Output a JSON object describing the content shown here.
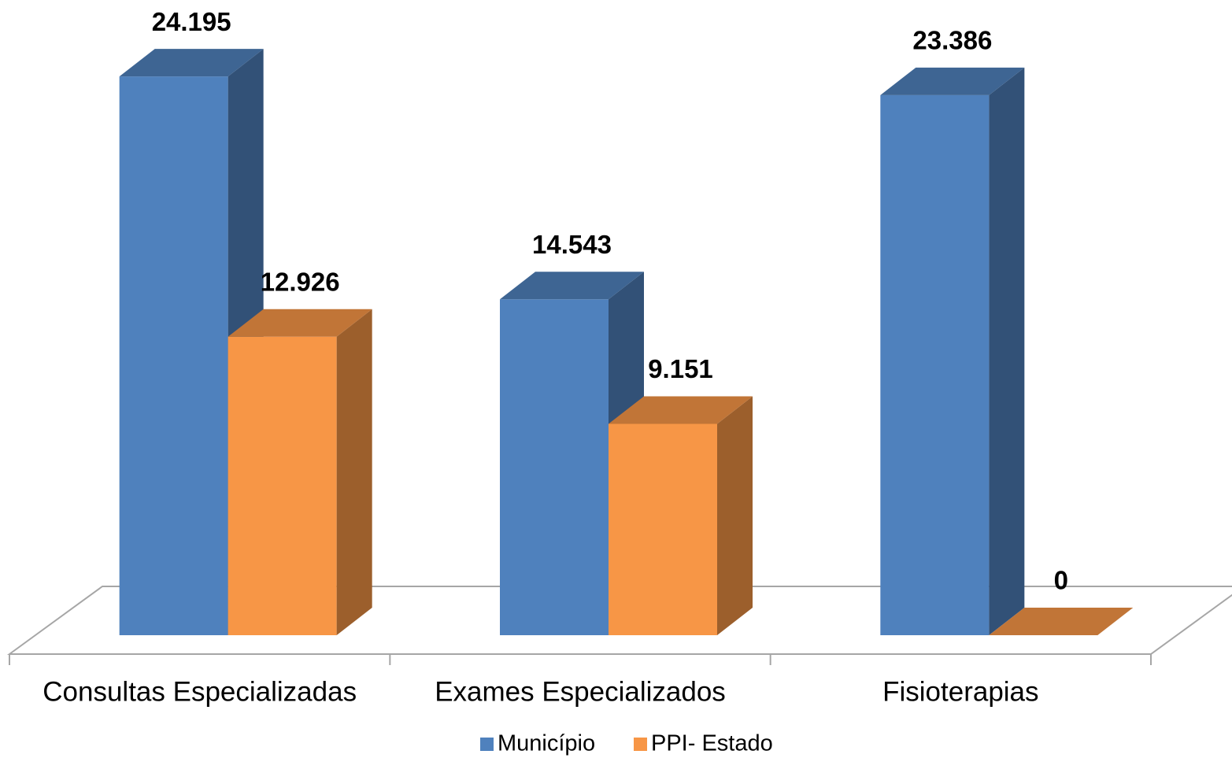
{
  "chart_data": {
    "type": "bar3d",
    "categories": [
      "Consultas Especializadas",
      "Exames Especializados",
      "Fisioterapias"
    ],
    "series": [
      {
        "name": "Município",
        "color": "#4f81bd",
        "values": [
          24195,
          14543,
          23386
        ],
        "value_labels": [
          "24.195",
          "14.543",
          "23.386"
        ]
      },
      {
        "name": "PPI- Estado",
        "color": "#f79646",
        "values": [
          12926,
          9151,
          0
        ],
        "value_labels": [
          "12.926",
          "9.151",
          "0"
        ]
      }
    ],
    "legend": "bottom"
  }
}
